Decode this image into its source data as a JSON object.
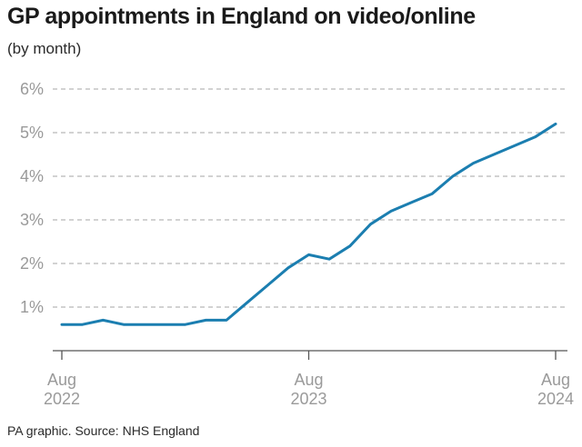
{
  "title": "GP appointments in England on video/online",
  "subtitle": "(by month)",
  "footer": "PA graphic. Source: NHS England",
  "colors": {
    "line": "#1b7eb0",
    "grid": "#b8b8b8",
    "axis": "#555555",
    "tick_text": "#9a9a9a"
  },
  "chart_data": {
    "type": "line",
    "title": "GP appointments in England on video/online",
    "subtitle": "(by month)",
    "xlabel": "",
    "ylabel": "",
    "y_unit": "%",
    "ylim": [
      0,
      6
    ],
    "y_ticks": [
      {
        "value": 1,
        "label": "1%"
      },
      {
        "value": 2,
        "label": "2%"
      },
      {
        "value": 3,
        "label": "3%"
      },
      {
        "value": 4,
        "label": "4%"
      },
      {
        "value": 5,
        "label": "5%"
      },
      {
        "value": 6,
        "label": "6%"
      }
    ],
    "x_ticks": [
      {
        "month": "2022-08",
        "line1": "Aug",
        "line2": "2022"
      },
      {
        "month": "2023-08",
        "line1": "Aug",
        "line2": "2023"
      },
      {
        "month": "2024-08",
        "line1": "Aug",
        "line2": "2024"
      }
    ],
    "grid": true,
    "legend": "none",
    "series": [
      {
        "x": [
          "2022-08",
          "2022-09",
          "2022-10",
          "2022-11",
          "2022-12",
          "2023-01",
          "2023-02",
          "2023-03",
          "2023-04",
          "2023-05",
          "2023-06",
          "2023-07",
          "2023-08",
          "2023-09",
          "2023-10",
          "2023-11",
          "2023-12",
          "2024-01",
          "2024-02",
          "2024-03",
          "2024-04",
          "2024-05",
          "2024-06",
          "2024-07",
          "2024-08"
        ],
        "values": [
          0.6,
          0.6,
          0.7,
          0.6,
          0.6,
          0.6,
          0.6,
          0.7,
          0.7,
          1.1,
          1.5,
          1.9,
          2.2,
          2.1,
          2.4,
          2.9,
          3.2,
          3.4,
          3.6,
          4.0,
          4.3,
          4.5,
          4.7,
          4.9,
          5.2
        ]
      }
    ]
  }
}
